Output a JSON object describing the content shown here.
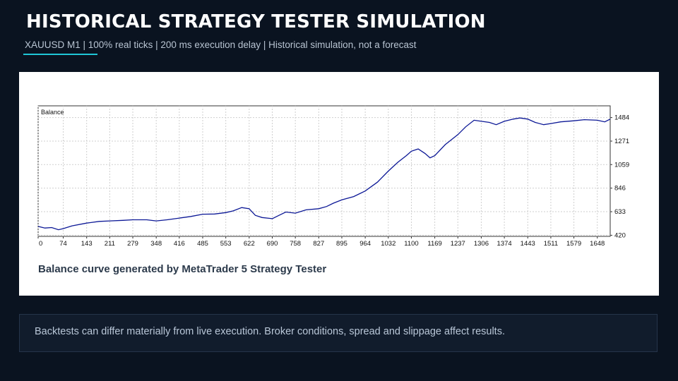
{
  "header": {
    "title": "HISTORICAL STRATEGY TESTER SIMULATION",
    "subtitle": "XAUUSD M1 | 100% real ticks | 200 ms execution delay | Historical simulation, not a forecast"
  },
  "panel": {
    "caption": "Balance curve generated by MetaTrader 5 Strategy Tester"
  },
  "footer": {
    "note": "Backtests can differ materially from live execution. Broker conditions, spread and slippage affect results."
  },
  "colors": {
    "background": "#0a1320",
    "accent": "#1fc6d6",
    "line": "#0c1896"
  },
  "chart_data": {
    "type": "line",
    "title": "Balance",
    "grid": true,
    "x_ticks": [
      "0",
      "74",
      "143",
      "211",
      "279",
      "348",
      "416",
      "485",
      "553",
      "622",
      "690",
      "758",
      "827",
      "895",
      "964",
      "1032",
      "1100",
      "1169",
      "1237",
      "1306",
      "1374",
      "1443",
      "1511",
      "1579",
      "1648"
    ],
    "y_ticks": [
      "420",
      "633",
      "846",
      "1059",
      "1271",
      "1484"
    ],
    "xlim": [
      0,
      1686
    ],
    "ylim": [
      410,
      1590
    ],
    "series": [
      {
        "values": [
          [
            0,
            500
          ],
          [
            20,
            485
          ],
          [
            40,
            490
          ],
          [
            60,
            470
          ],
          [
            74,
            480
          ],
          [
            100,
            505
          ],
          [
            143,
            530
          ],
          [
            180,
            545
          ],
          [
            211,
            550
          ],
          [
            250,
            555
          ],
          [
            279,
            560
          ],
          [
            320,
            560
          ],
          [
            348,
            550
          ],
          [
            380,
            560
          ],
          [
            416,
            575
          ],
          [
            450,
            590
          ],
          [
            485,
            610
          ],
          [
            520,
            612
          ],
          [
            553,
            625
          ],
          [
            575,
            640
          ],
          [
            600,
            670
          ],
          [
            622,
            660
          ],
          [
            640,
            600
          ],
          [
            660,
            580
          ],
          [
            690,
            570
          ],
          [
            710,
            600
          ],
          [
            730,
            630
          ],
          [
            758,
            620
          ],
          [
            790,
            650
          ],
          [
            827,
            660
          ],
          [
            850,
            680
          ],
          [
            870,
            710
          ],
          [
            895,
            740
          ],
          [
            930,
            770
          ],
          [
            964,
            820
          ],
          [
            1000,
            900
          ],
          [
            1032,
            1000
          ],
          [
            1060,
            1080
          ],
          [
            1085,
            1140
          ],
          [
            1100,
            1180
          ],
          [
            1120,
            1200
          ],
          [
            1140,
            1160
          ],
          [
            1155,
            1120
          ],
          [
            1169,
            1140
          ],
          [
            1200,
            1240
          ],
          [
            1237,
            1330
          ],
          [
            1260,
            1400
          ],
          [
            1285,
            1460
          ],
          [
            1306,
            1450
          ],
          [
            1330,
            1440
          ],
          [
            1350,
            1420
          ],
          [
            1374,
            1450
          ],
          [
            1400,
            1470
          ],
          [
            1420,
            1480
          ],
          [
            1443,
            1470
          ],
          [
            1465,
            1440
          ],
          [
            1490,
            1420
          ],
          [
            1511,
            1430
          ],
          [
            1540,
            1445
          ],
          [
            1579,
            1455
          ],
          [
            1610,
            1465
          ],
          [
            1648,
            1460
          ],
          [
            1670,
            1445
          ],
          [
            1686,
            1470
          ]
        ]
      }
    ]
  }
}
